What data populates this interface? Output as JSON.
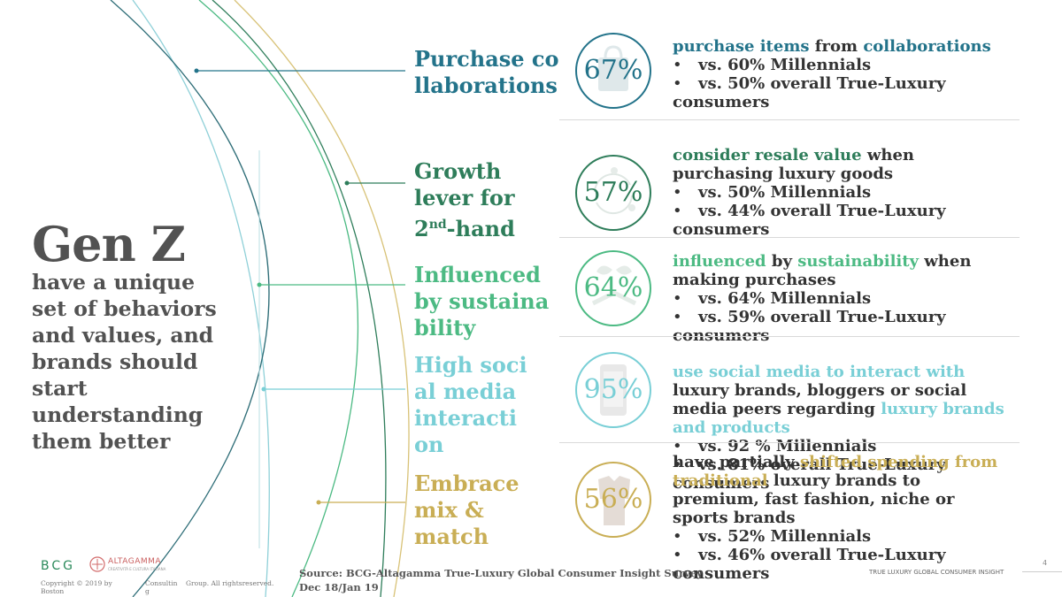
{
  "left": {
    "title": "Gen Z",
    "subtitle": "have a unique set of behaviors and values, and brands should start understanding them better"
  },
  "categories": [
    {
      "label": "Purchase collaborations",
      "color": "#23738a"
    },
    {
      "label": "Growth lever for 2nd-hand",
      "color": "#2e7d5a"
    },
    {
      "label": "Influenced by sustainability",
      "color": "#4cba83"
    },
    {
      "label": "High social media interaction",
      "color": "#79cfd6"
    },
    {
      "label": "Embrace mix & match",
      "color": "#c9ae55"
    }
  ],
  "growth": {
    "pre": "Growth lever for 2",
    "sup": "nd",
    "post": "-hand"
  },
  "stats": [
    {
      "value": "67%",
      "icon": "shopping-bag-icon",
      "parts": [
        "purchase items",
        " from ",
        "collaborations"
      ],
      "bullets": [
        "vs. 60% Millennials",
        "vs. 50% overall True-Luxury consumers"
      ]
    },
    {
      "value": "57%",
      "icon": "recycle-arrows-icon",
      "parts": [
        "consider resale value",
        " when purchasing luxury goods"
      ],
      "bullets": [
        "vs. 50% Millennials",
        "vs. 44% overall True-Luxury consumers"
      ]
    },
    {
      "value": "64%",
      "icon": "leaves-hand-icon",
      "parts": [
        "influenced",
        " by ",
        "sustainability",
        " when making  purchases"
      ],
      "bullets": [
        "vs. 64% Millennials",
        "vs. 59% overall True-Luxury consumers"
      ]
    },
    {
      "value": "95%",
      "icon": "smartphone-icon",
      "parts": [
        "use social media to interact with",
        " luxury brands, bloggers or social media peers regarding ",
        "luxury brands and products"
      ],
      "bullets": [
        "vs. 92 % Millennials",
        "vs. 81% overall True-Luxury consumers"
      ]
    },
    {
      "value": "56%",
      "icon": "clothes-icon",
      "parts": [
        "have partially ",
        "shifted spending from traditional",
        " luxury brands to premium, fast  fashion, niche or sports brands"
      ],
      "bullets": [
        "vs. 52% Millennials",
        "vs. 46% overall True-Luxury consumers"
      ]
    }
  ],
  "footer": {
    "source": "Source: BCG-Altagamma True-Luxury Global Consumer Insight Survey Dec 18/Jan 19",
    "bcg_logo": "BCG",
    "altagamma_logo": "ALTAGAMMA",
    "altagamma_tagline": "CREATIVITÀ E CULTURA ITALIANA",
    "copyright_1": "Copyright © 2019 by Boston",
    "copyright_2": "Consultin g",
    "copyright_3": "Group. All rightsreserved.",
    "report": "TRUE LUXURY GLOBAL CONSUMER INSIGHT",
    "page": "4"
  },
  "colors": {
    "teal": "#23738a",
    "green": "#2e7d5a",
    "mint": "#4cba83",
    "cyan": "#79cfd6",
    "gold": "#c9ae55",
    "gray": "#525252"
  }
}
